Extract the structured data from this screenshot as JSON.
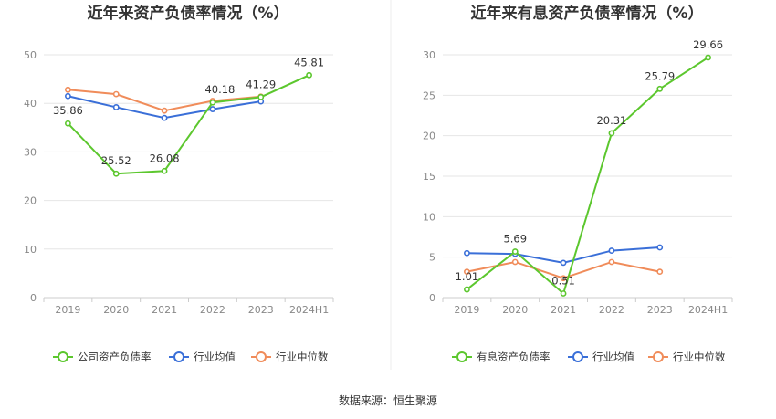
{
  "source": "数据来源：恒生聚源",
  "chart_data": [
    {
      "type": "line",
      "title": "近年来资产负债率情况（%）",
      "categories": [
        "2019",
        "2020",
        "2021",
        "2022",
        "2023",
        "2024H1"
      ],
      "yticks": [
        "0",
        "10",
        "20",
        "30",
        "40",
        "50"
      ],
      "ylim": [
        0,
        50
      ],
      "grid": true,
      "legend_position": "bottom",
      "series": [
        {
          "name": "公司资产负债率",
          "color": "#5cc72e",
          "values": [
            35.86,
            25.52,
            26.08,
            40.18,
            41.29,
            45.81
          ],
          "labels": [
            "35.86",
            "25.52",
            "26.08",
            "40.18",
            "41.29",
            "45.81"
          ]
        },
        {
          "name": "行业均值",
          "color": "#3a6fd8",
          "values": [
            41.5,
            39.2,
            37.0,
            38.8,
            40.4,
            null
          ]
        },
        {
          "name": "行业中位数",
          "color": "#f08c5a",
          "values": [
            42.8,
            41.9,
            38.5,
            40.5,
            41.4,
            null
          ]
        }
      ]
    },
    {
      "type": "line",
      "title": "近年来有息资产负债率情况（%）",
      "categories": [
        "2019",
        "2020",
        "2021",
        "2022",
        "2023",
        "2024H1"
      ],
      "yticks": [
        "0",
        "5",
        "10",
        "15",
        "20",
        "25",
        "30"
      ],
      "ylim": [
        0,
        30
      ],
      "grid": true,
      "legend_position": "bottom",
      "series": [
        {
          "name": "有息资产负债率",
          "color": "#5cc72e",
          "values": [
            1.01,
            5.69,
            0.51,
            20.31,
            25.79,
            29.66
          ],
          "labels": [
            "1.01",
            "5.69",
            "0.51",
            "20.31",
            "25.79",
            "29.66"
          ]
        },
        {
          "name": "行业均值",
          "color": "#3a6fd8",
          "values": [
            5.5,
            5.4,
            4.3,
            5.8,
            6.2,
            null
          ]
        },
        {
          "name": "行业中位数",
          "color": "#f08c5a",
          "values": [
            3.2,
            4.4,
            2.4,
            4.4,
            3.2,
            null
          ]
        }
      ]
    }
  ]
}
